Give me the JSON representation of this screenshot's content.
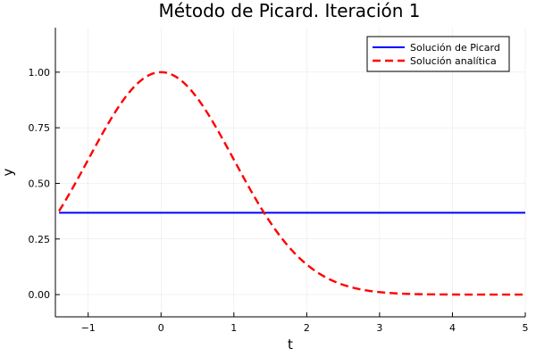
{
  "chart_data": {
    "type": "line",
    "title": "Método de Picard. Iteración 1",
    "xlabel": "t",
    "ylabel": "y",
    "xlim": [
      -1.45,
      5
    ],
    "ylim": [
      -0.1,
      1.2
    ],
    "xticks": [
      -1,
      0,
      1,
      2,
      3,
      4,
      5
    ],
    "xtick_labels": [
      "−1",
      "0",
      "1",
      "2",
      "3",
      "4",
      "5"
    ],
    "yticks": [
      0,
      0.25,
      0.5,
      0.75,
      1
    ],
    "ytick_labels": [
      "0.00",
      "0.25",
      "0.50",
      "0.75",
      "1.00"
    ],
    "grid": true,
    "legend_position": "top-right",
    "series": [
      {
        "name": "Solución de Picard",
        "color": "#0000ff",
        "style": "solid",
        "x": [
          -1.4,
          5
        ],
        "y": [
          0.3679,
          0.3679
        ]
      },
      {
        "name": "Solución analítica",
        "color": "#ff0000",
        "style": "dashed",
        "function": "exp(-t^2/2)",
        "x": [
          -1.4,
          -1.2,
          -1.0,
          -0.8,
          -0.6,
          -0.4,
          -0.2,
          0.0,
          0.2,
          0.4,
          0.6,
          0.8,
          1.0,
          1.2,
          1.4,
          1.6,
          1.8,
          2.0,
          2.2,
          2.4,
          2.6,
          2.8,
          3.0,
          3.2,
          3.4,
          3.6,
          3.8,
          4.0,
          4.2,
          4.4,
          4.6,
          4.8,
          5.0
        ],
        "y": [
          0.375,
          0.487,
          0.607,
          0.726,
          0.835,
          0.923,
          0.98,
          1.0,
          0.98,
          0.923,
          0.835,
          0.726,
          0.607,
          0.487,
          0.375,
          0.278,
          0.198,
          0.135,
          0.089,
          0.056,
          0.034,
          0.02,
          0.011,
          0.006,
          0.003,
          0.0015,
          0.0007,
          0.0003,
          0.0001,
          0.0001,
          0.0,
          0.0,
          0.0
        ]
      }
    ]
  }
}
